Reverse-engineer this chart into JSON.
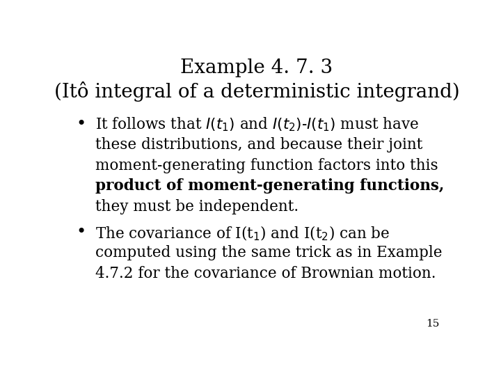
{
  "title_line1": "Example 4. 7. 3",
  "title_line2": "(Itô integral of a deterministic integrand)",
  "bullet1_line1_math": "It follows that $I(t_1)$ and $I(t_2)$-$I(t_1)$ must have",
  "bullet1_line2": "these distributions, and because their joint",
  "bullet1_line3": "moment-generating function factors into this",
  "bullet1_line4_bold": "product of moment-generating functions,",
  "bullet1_line5": "they must be independent.",
  "bullet2_line1": "The covariance of I(t$_1$) and I(t$_2$) can be",
  "bullet2_line2": "computed using the same trick as in Example",
  "bullet2_line3": "4.7.2 for the covariance of Brownian motion.",
  "page_number": "15",
  "bg_color": "#ffffff",
  "text_color": "#000000",
  "title_fontsize": 20,
  "body_fontsize": 15.5,
  "page_fontsize": 11
}
